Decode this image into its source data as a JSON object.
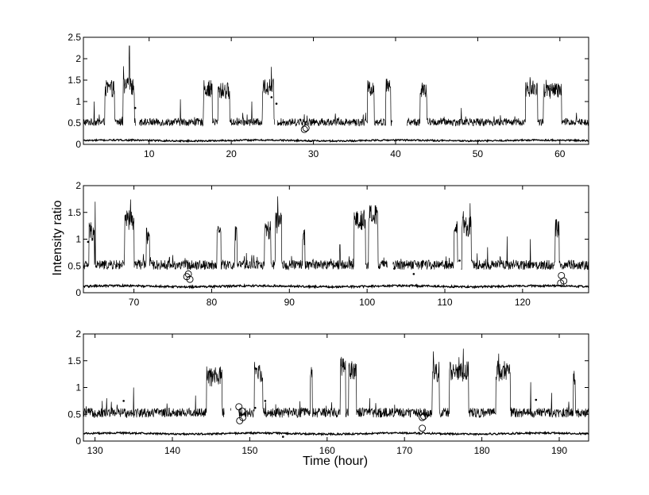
{
  "chart_data": [
    {
      "type": "line",
      "xlim": [
        2,
        63.5
      ],
      "ylim": [
        0,
        2.5
      ],
      "xticks": [
        10,
        20,
        30,
        40,
        50,
        60
      ],
      "yticks": [
        0,
        0.5,
        1,
        1.5,
        2,
        2.5
      ],
      "ytick_labels": [
        "0",
        "0.5",
        "1",
        "1.5",
        "2",
        "2.5"
      ],
      "series": [
        {
          "role": "upper-trace",
          "baseline": 0.52,
          "noise": 0.09,
          "gaps": [
            [
              8.4,
              8.8
            ],
            [
              25.3,
              25.6
            ],
            [
              39.6,
              41.4
            ]
          ],
          "bursts": [
            [
              4.6,
              5.8,
              1.3
            ],
            [
              6.8,
              8.2,
              1.35
            ],
            [
              16.6,
              17.7,
              1.3
            ],
            [
              18.4,
              19.8,
              1.25
            ],
            [
              23.8,
              25.2,
              1.35
            ],
            [
              36.6,
              37.4,
              1.3
            ],
            [
              38.8,
              39.4,
              1.35
            ],
            [
              43.0,
              43.8,
              1.25
            ],
            [
              55.8,
              57.3,
              1.3
            ],
            [
              58.0,
              60.2,
              1.25
            ]
          ],
          "spikes": [
            [
              3.3,
              1.0
            ],
            [
              7.6,
              2.3
            ],
            [
              13.8,
              1.05
            ],
            [
              22.5,
              1.0
            ],
            [
              48.0,
              0.85
            ]
          ]
        },
        {
          "role": "lower-trace",
          "baseline": 0.09,
          "noise": 0.018
        }
      ],
      "circles": [
        [
          28.9,
          0.35
        ],
        [
          29.1,
          0.38
        ]
      ],
      "dots": [
        [
          8.3,
          0.85
        ],
        [
          9.0,
          0.55
        ],
        [
          24.9,
          1.1
        ],
        [
          25.5,
          0.95
        ]
      ]
    },
    {
      "type": "line",
      "xlim": [
        63.5,
        128.5
      ],
      "ylim": [
        0,
        2
      ],
      "xticks": [
        70,
        80,
        90,
        100,
        110,
        120
      ],
      "yticks": [
        0,
        0.5,
        1,
        1.5,
        2
      ],
      "ytick_labels": [
        "0",
        "0.5",
        "1",
        "1.5",
        "2"
      ],
      "ylabel": "Intensity ratio",
      "series": [
        {
          "role": "upper-trace",
          "baseline": 0.52,
          "noise": 0.09,
          "gaps": [
            [
              102.6,
              103.3
            ],
            [
              111.7,
              112.1
            ]
          ],
          "bursts": [
            [
              64.2,
              64.9,
              1.15
            ],
            [
              68.8,
              70.0,
              1.35
            ],
            [
              71.6,
              72.0,
              1.1
            ],
            [
              80.7,
              81.2,
              1.15
            ],
            [
              83.0,
              83.3,
              1.05
            ],
            [
              86.8,
              87.6,
              1.15
            ],
            [
              88.2,
              89.0,
              1.3
            ],
            [
              91.7,
              92.0,
              1.05
            ],
            [
              98.3,
              99.8,
              1.35
            ],
            [
              100.2,
              101.4,
              1.45
            ],
            [
              111.2,
              111.6,
              1.15
            ],
            [
              112.2,
              113.4,
              1.25
            ],
            [
              124.2,
              124.7,
              1.2
            ]
          ],
          "spikes": [
            [
              65.0,
              1.7
            ],
            [
              88.5,
              1.8
            ],
            [
              118.0,
              1.05
            ],
            [
              121.0,
              1.0
            ],
            [
              115.5,
              0.85
            ],
            [
              96.5,
              0.9
            ]
          ]
        },
        {
          "role": "lower-trace",
          "baseline": 0.12,
          "noise": 0.018
        }
      ],
      "circles": [
        [
          76.8,
          0.3
        ],
        [
          77.2,
          0.25
        ],
        [
          77.0,
          0.35
        ],
        [
          125.0,
          0.32
        ],
        [
          125.3,
          0.22
        ],
        [
          124.9,
          0.18
        ]
      ],
      "dots": [
        [
          64.1,
          0.95
        ],
        [
          103.5,
          0.45
        ],
        [
          106.0,
          0.35
        ],
        [
          111.9,
          0.6
        ],
        [
          122.5,
          0.55
        ]
      ]
    },
    {
      "type": "line",
      "xlim": [
        128.5,
        193.8
      ],
      "ylim": [
        0,
        2
      ],
      "xticks": [
        130,
        140,
        150,
        160,
        170,
        180,
        190
      ],
      "yticks": [
        0,
        0.5,
        1,
        1.5,
        2
      ],
      "ytick_labels": [
        "0",
        "0.5",
        "1",
        "1.5",
        "2"
      ],
      "xlabel": "Time (hour)",
      "series": [
        {
          "role": "upper-trace",
          "baseline": 0.53,
          "noise": 0.09,
          "gaps": [
            [
              146.7,
              147.5
            ],
            [
              147.6,
              148.6
            ]
          ],
          "bursts": [
            [
              144.4,
              146.4,
              1.2
            ],
            [
              150.6,
              151.7,
              1.3
            ],
            [
              157.8,
              158.1,
              1.2
            ],
            [
              161.7,
              162.4,
              1.4
            ],
            [
              162.8,
              163.8,
              1.35
            ],
            [
              173.6,
              174.5,
              1.3
            ],
            [
              175.8,
              178.3,
              1.3
            ],
            [
              181.8,
              183.7,
              1.3
            ],
            [
              191.8,
              192.1,
              1.2
            ]
          ],
          "spikes": [
            [
              135.0,
              1.0
            ],
            [
              143.0,
              0.85
            ],
            [
              165.5,
              0.8
            ],
            [
              186.3,
              1.1
            ],
            [
              189.0,
              0.9
            ],
            [
              131.5,
              0.8
            ]
          ]
        },
        {
          "role": "lower-trace",
          "baseline": 0.14,
          "noise": 0.016
        }
      ],
      "circles": [
        [
          148.6,
          0.64
        ],
        [
          148.7,
          0.38
        ],
        [
          149.1,
          0.44
        ],
        [
          149.0,
          0.56
        ],
        [
          172.3,
          0.44
        ],
        [
          172.5,
          0.46
        ],
        [
          172.3,
          0.24
        ]
      ],
      "dots": [
        [
          133.7,
          0.75
        ],
        [
          134.0,
          0.15
        ],
        [
          152.0,
          0.75
        ],
        [
          154.3,
          0.08
        ],
        [
          150.7,
          0.62
        ],
        [
          187.0,
          0.77
        ]
      ]
    }
  ]
}
